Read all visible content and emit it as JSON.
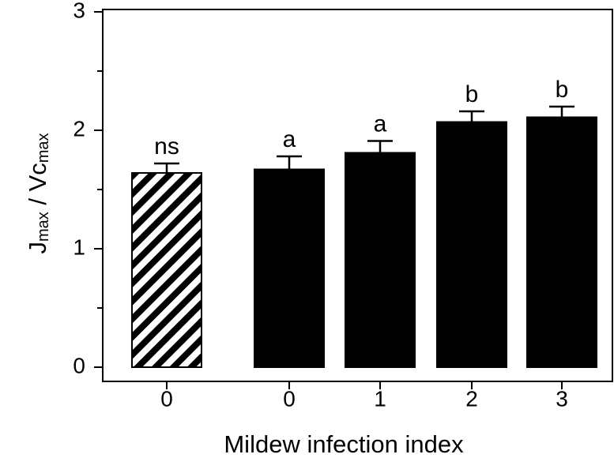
{
  "chart_data": {
    "type": "bar",
    "categories": [
      "0",
      "0",
      "1",
      "2",
      "3"
    ],
    "values": [
      1.64,
      1.67,
      1.81,
      2.07,
      2.11
    ],
    "errors": [
      0.08,
      0.11,
      0.1,
      0.09,
      0.09
    ],
    "letters": [
      "ns",
      "a",
      "a",
      "b",
      "b"
    ],
    "patterns": [
      "hatch",
      "solid",
      "solid",
      "solid",
      "solid"
    ],
    "color": "#000000",
    "ylim": [
      -0.12,
      3.02
    ],
    "yticks": [
      0,
      1,
      2,
      3
    ],
    "yminorticks": [
      0.5,
      1.5,
      2.5
    ],
    "xlabel": "Mildew infection index",
    "ylabel": [
      {
        "text": "J"
      },
      {
        "text": "max",
        "sub": true
      },
      {
        "text": " / Vc"
      },
      {
        "text": "max",
        "sub": true
      }
    ]
  }
}
